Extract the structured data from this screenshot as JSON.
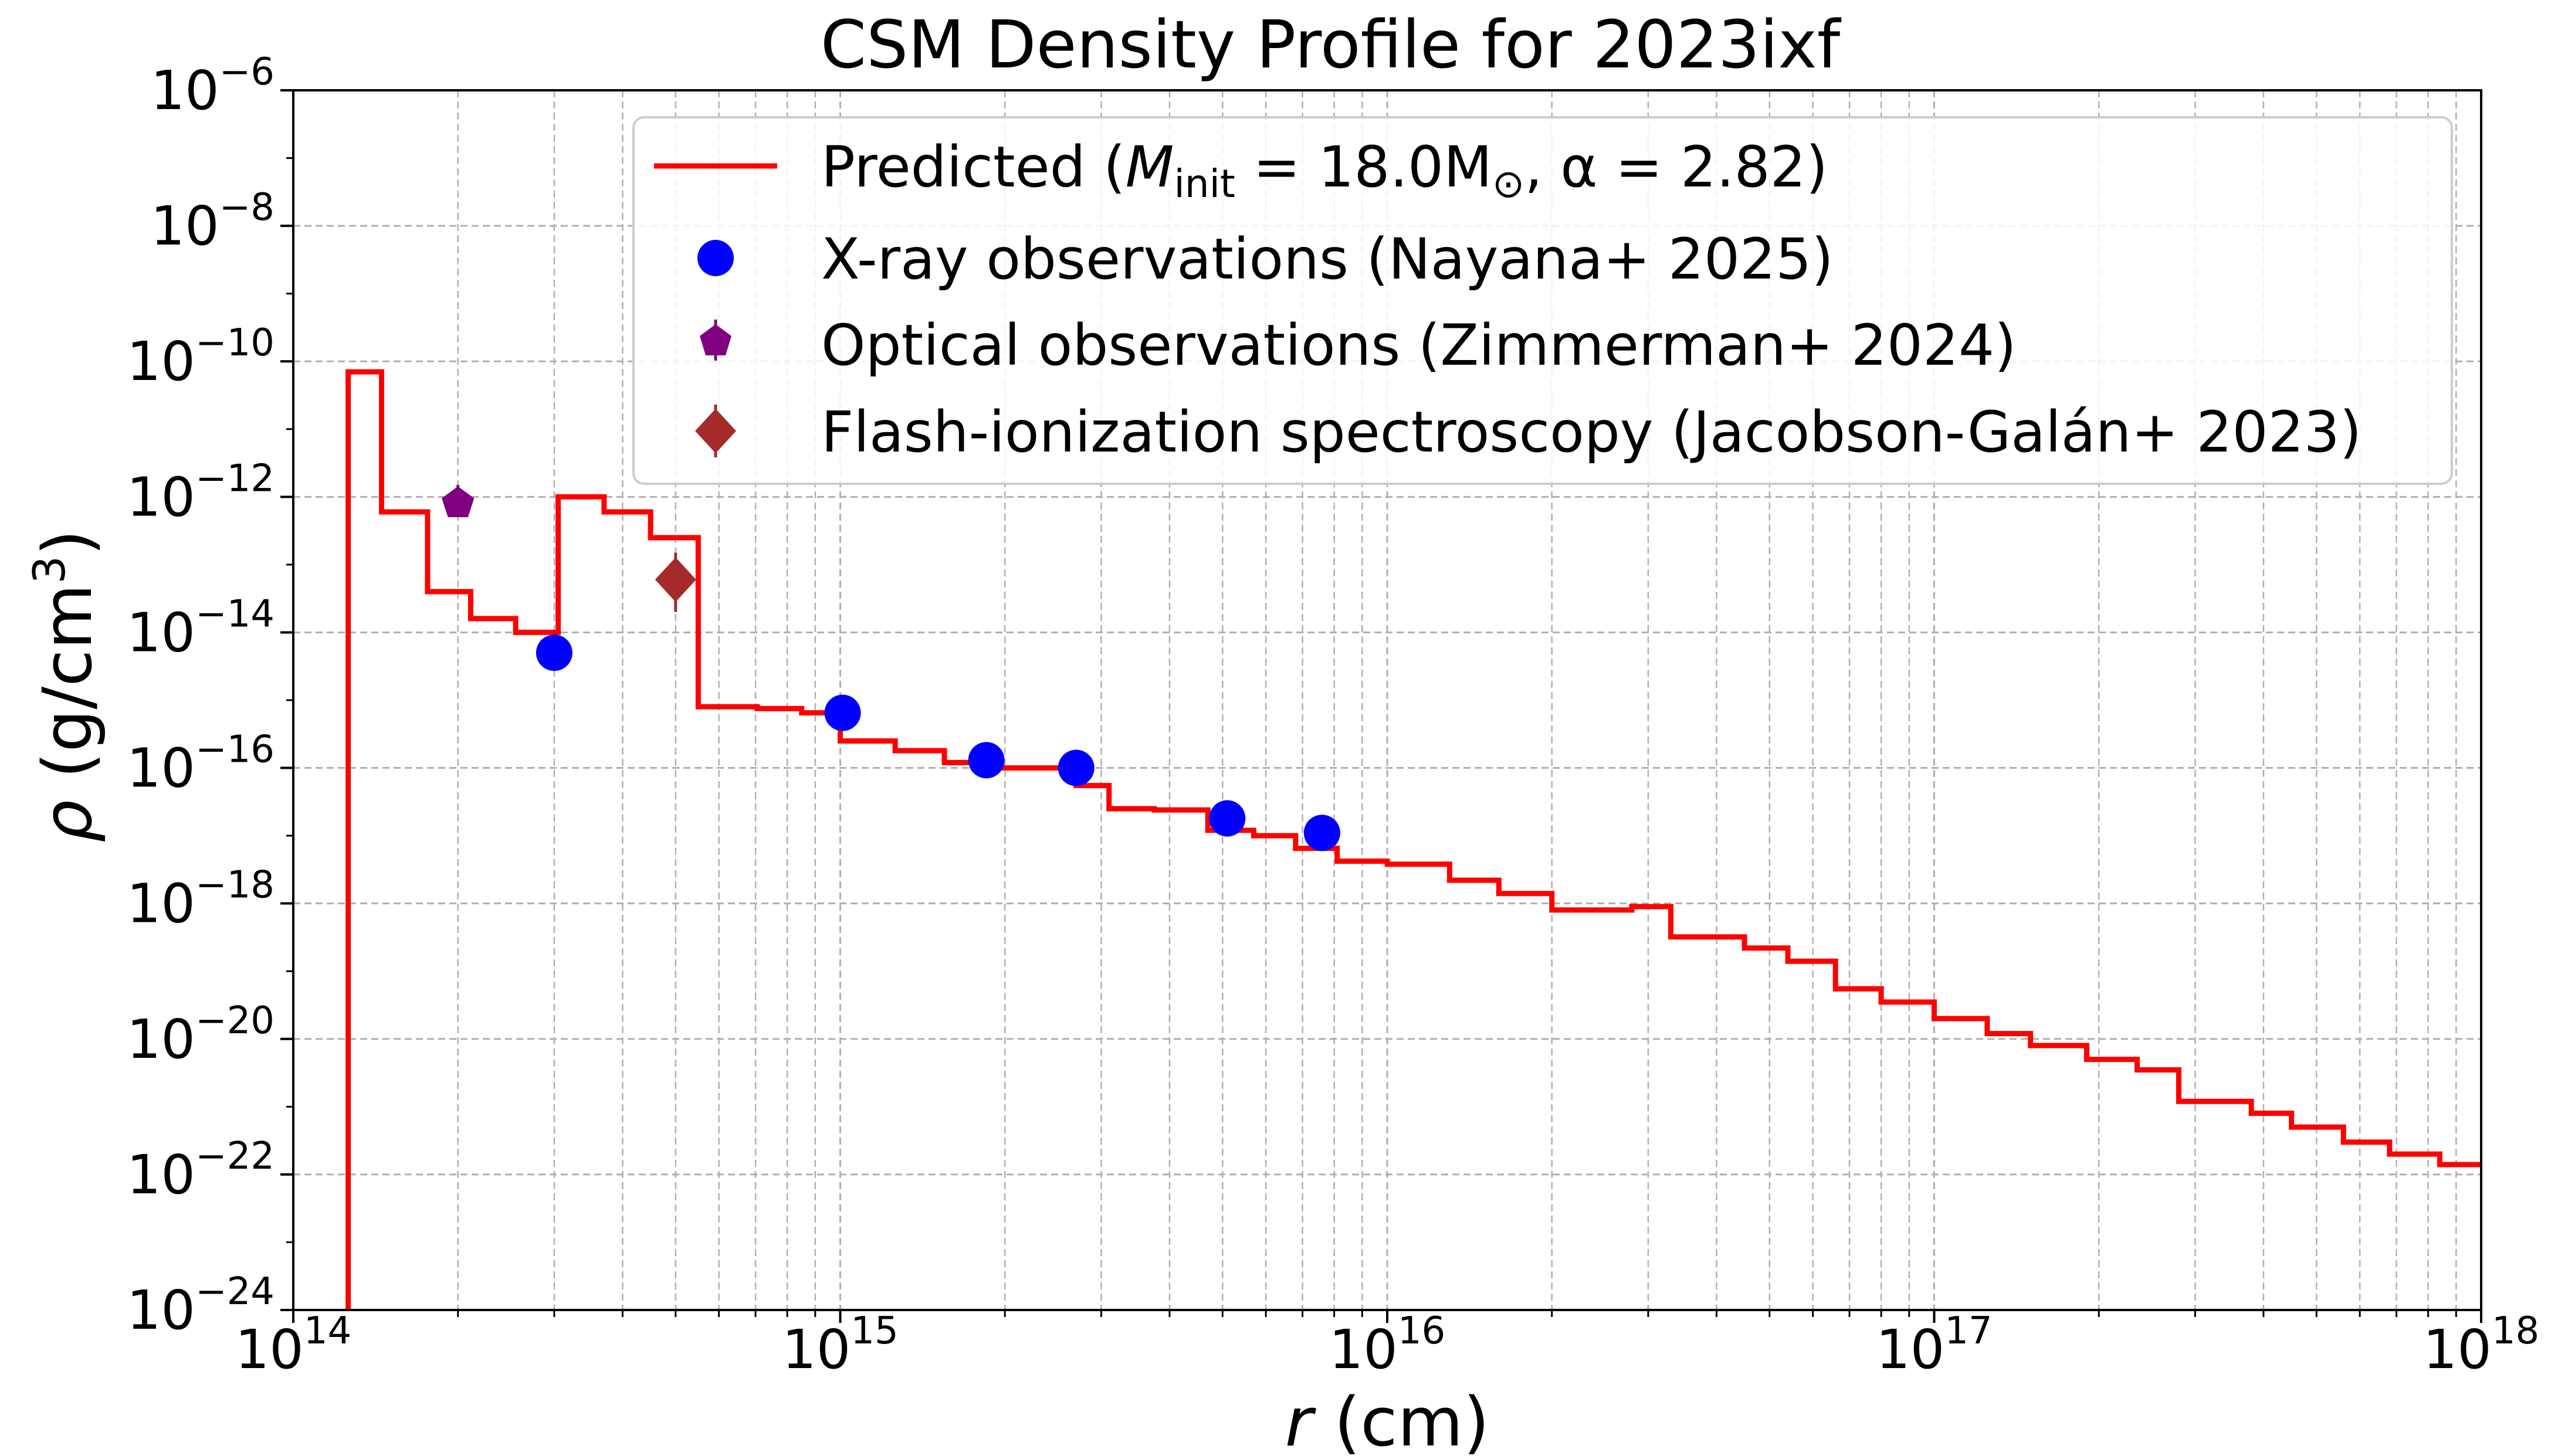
{
  "chart_data": {
    "type": "line",
    "title": "CSM Density Profile for 2023ixf",
    "xlabel": "r (cm)",
    "ylabel": "ρ (g/cm³)",
    "xscale": "log",
    "yscale": "log",
    "xlim": [
      100000000000000.0,
      1e+18
    ],
    "ylim": [
      1e-24,
      1e-06
    ],
    "grid": true,
    "legend_position": "top-right",
    "x_ticks": [
      {
        "base": "10",
        "exp": "14"
      },
      {
        "base": "10",
        "exp": "15"
      },
      {
        "base": "10",
        "exp": "16"
      },
      {
        "base": "10",
        "exp": "17"
      },
      {
        "base": "10",
        "exp": "18"
      }
    ],
    "y_ticks": [
      {
        "base": "10",
        "exp": "−24"
      },
      {
        "base": "10",
        "exp": "−22"
      },
      {
        "base": "10",
        "exp": "−20"
      },
      {
        "base": "10",
        "exp": "−18"
      },
      {
        "base": "10",
        "exp": "−16"
      },
      {
        "base": "10",
        "exp": "−14"
      },
      {
        "base": "10",
        "exp": "−12"
      },
      {
        "base": "10",
        "exp": "−10"
      },
      {
        "base": "10",
        "exp": "−8"
      },
      {
        "base": "10",
        "exp": "−6"
      }
    ],
    "legend": [
      {
        "label": "Predicted (M_init = 18.0M⊙, α = 2.82)"
      },
      {
        "label": "X-ray observations (Nayana+ 2025)"
      },
      {
        "label": "Optical observations (Zimmerman+ 2024)"
      },
      {
        "label": "Flash-ionization spectroscopy (Jacobson-Galán+ 2023)"
      }
    ],
    "legend_parts": {
      "predicted_prefix": "Predicted (",
      "m_symbol": "M",
      "m_subscript": "init",
      "predicted_middle": " = 18.0M",
      "sun_symbol": "⊙",
      "predicted_suffix": ", α = 2.82)"
    },
    "series": [
      {
        "name": "Predicted",
        "kind": "step",
        "color": "#ff0000",
        "edges": [
          126000000000000.0,
          145000000000000.0,
          176000000000000.0,
          211000000000000.0,
          255000000000000.0,
          305000000000000.0,
          370000000000000.0,
          450000000000000.0,
          550000000000000.0,
          705000000000000.0,
          850000000000000.0,
          1000000000000000.0,
          1260000000000000.0,
          1550000000000000.0,
          1860000000000000.0,
          2270000000000000.0,
          2700000000000000.0,
          3100000000000000.0,
          3750000000000000.0,
          4700000000000000.0,
          5700000000000000.0,
          6800000000000000.0,
          8100000000000000.0,
          1e+16,
          1.3e+16,
          1.6e+16,
          2e+16,
          2.8e+16,
          3.3e+16,
          4.5e+16,
          5.4e+16,
          6.6e+16,
          8e+16,
          1e+17,
          1.25e+17,
          1.5e+17,
          1.9e+17,
          2.35e+17,
          2.8e+17,
          3.8e+17,
          4.5e+17,
          5.6e+17,
          6.8e+17,
          8.4e+17,
          1e+18
        ],
        "values": [
          7e-11,
          6e-13,
          4e-14,
          1.6e-14,
          1e-14,
          1e-12,
          6e-13,
          2.5e-13,
          8e-16,
          7.5e-16,
          6.5e-16,
          2.5e-16,
          1.8e-16,
          1.2e-16,
          1e-16,
          1e-16,
          5.5e-17,
          2.5e-17,
          2.4e-17,
          1.2e-17,
          1e-17,
          6.5e-18,
          4.2e-18,
          3.8e-18,
          2.2e-18,
          1.4e-18,
          8e-19,
          9e-19,
          3.2e-19,
          2.2e-19,
          1.4e-19,
          5.5e-20,
          3.5e-20,
          2e-20,
          1.2e-20,
          8e-21,
          5e-21,
          3.5e-21,
          1.2e-21,
          8e-22,
          5e-22,
          3e-22,
          2e-22,
          1.4e-22
        ],
        "initial_value": 1e-24
      },
      {
        "name": "X-ray observations (Nayana+ 2025)",
        "kind": "scatter",
        "marker": "circle",
        "color": "#0000ff",
        "x": [
          300000000000000.0,
          1010000000000000.0,
          1850000000000000.0,
          2700000000000000.0,
          5100000000000000.0,
          7600000000000000.0
        ],
        "y": [
          5e-15,
          6.5e-16,
          1.3e-16,
          1e-16,
          1.8e-17,
          1.1e-17
        ]
      },
      {
        "name": "Optical observations (Zimmerman+ 2024)",
        "kind": "scatter",
        "marker": "pentagon",
        "color": "#800080",
        "x": [
          200000000000000.0
        ],
        "y": [
          8e-13
        ],
        "yerr_low": [
          5.5e-13
        ],
        "yerr_high": [
          1.5e-12
        ]
      },
      {
        "name": "Flash-ionization spectroscopy (Jacobson-Galán+ 2023)",
        "kind": "scatter",
        "marker": "diamond",
        "color": "#a52a2a",
        "x": [
          500000000000000.0
        ],
        "y": [
          6e-14
        ],
        "yerr_low": [
          2e-14
        ],
        "yerr_high": [
          1.5e-13
        ]
      }
    ]
  }
}
